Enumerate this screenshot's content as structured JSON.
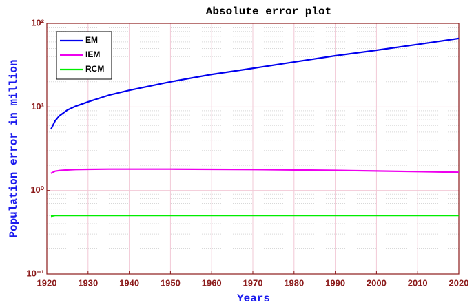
{
  "chart_data": {
    "type": "line",
    "title": "Absolute error plot",
    "x_label": "Years",
    "y_label": "Population error in million",
    "x": [
      1921,
      1922,
      1923,
      1925,
      1927,
      1930,
      1935,
      1940,
      1950,
      1960,
      1970,
      1980,
      1990,
      2000,
      2010,
      2020
    ],
    "series": [
      {
        "name": "EM",
        "color": "#0000ee",
        "values": [
          5.4,
          6.8,
          7.8,
          9.2,
          10.2,
          11.5,
          13.8,
          15.8,
          20,
          24.5,
          29,
          34.5,
          41,
          47.7,
          56,
          66
        ]
      },
      {
        "name": "IEM",
        "color": "#ee00ee",
        "values": [
          1.6,
          1.7,
          1.73,
          1.76,
          1.78,
          1.79,
          1.8,
          1.8,
          1.8,
          1.79,
          1.78,
          1.76,
          1.74,
          1.71,
          1.68,
          1.65
        ]
      },
      {
        "name": "RCM",
        "color": "#00ee00",
        "values": [
          0.49,
          0.5,
          0.5,
          0.5,
          0.5,
          0.5,
          0.5,
          0.5,
          0.5,
          0.5,
          0.5,
          0.5,
          0.5,
          0.5,
          0.5,
          0.5
        ]
      }
    ],
    "xlim": [
      1920,
      2020
    ],
    "xticks": [
      1920,
      1930,
      1940,
      1950,
      1960,
      1970,
      1980,
      1990,
      2000,
      2010,
      2020
    ],
    "ylim": [
      0.1,
      100
    ],
    "y_scale": "log",
    "yticks": [
      {
        "value": 0.1,
        "label": "10⁻¹"
      },
      {
        "value": 1,
        "label": "10⁰"
      },
      {
        "value": 10,
        "label": "10¹"
      },
      {
        "value": 100,
        "label": "10²"
      }
    ],
    "grid": true,
    "legend_position": "upper-left"
  }
}
